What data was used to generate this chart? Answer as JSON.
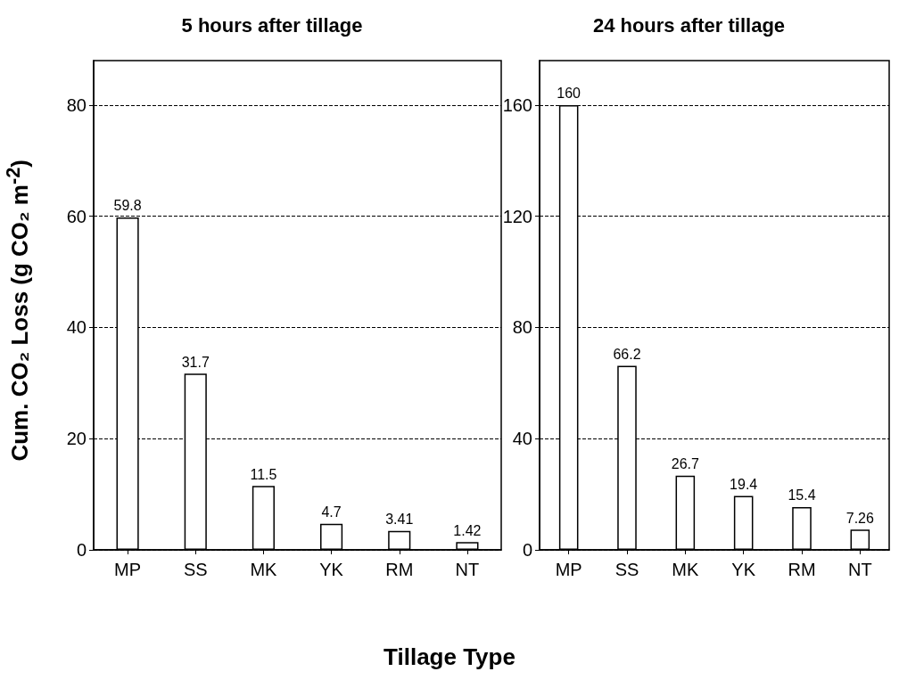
{
  "chart_data": [
    {
      "type": "bar",
      "title": "5 hours after tillage",
      "xlabel": "Tillage Type",
      "ylabel": "Cum. CO₂ Loss (g CO₂ m$^{-2}$)",
      "categories": [
        "MP",
        "SS",
        "MK",
        "YK",
        "RM",
        "NT"
      ],
      "values": [
        59.8,
        31.7,
        11.5,
        4.7,
        3.41,
        1.42
      ],
      "color": "#ffffff",
      "ylim": [
        0,
        88
      ],
      "yticks": [
        0,
        20,
        40,
        60,
        80
      ],
      "grid": "y",
      "data_labels": true
    },
    {
      "type": "bar",
      "title": "24 hours after tillage",
      "categories": [
        "MP",
        "SS",
        "MK",
        "YK",
        "RM",
        "NT"
      ],
      "values": [
        160,
        66.2,
        26.7,
        19.4,
        15.4,
        7.26
      ],
      "color": "#ffffff",
      "ylim": [
        0,
        176
      ],
      "yticks": [
        0,
        40,
        80,
        120,
        160
      ],
      "grid": "y",
      "data_labels": true
    }
  ]
}
